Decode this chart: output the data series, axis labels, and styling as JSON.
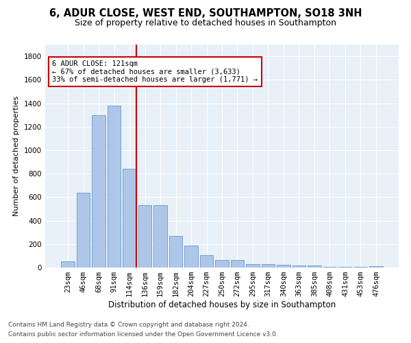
{
  "title1": "6, ADUR CLOSE, WEST END, SOUTHAMPTON, SO18 3NH",
  "title2": "Size of property relative to detached houses in Southampton",
  "xlabel": "Distribution of detached houses by size in Southampton",
  "ylabel": "Number of detached properties",
  "categories": [
    "23sqm",
    "46sqm",
    "68sqm",
    "91sqm",
    "114sqm",
    "136sqm",
    "159sqm",
    "182sqm",
    "204sqm",
    "227sqm",
    "250sqm",
    "272sqm",
    "295sqm",
    "317sqm",
    "340sqm",
    "363sqm",
    "385sqm",
    "408sqm",
    "431sqm",
    "453sqm",
    "476sqm"
  ],
  "values": [
    50,
    640,
    1300,
    1380,
    840,
    530,
    530,
    270,
    185,
    105,
    65,
    65,
    30,
    30,
    25,
    20,
    15,
    8,
    5,
    4,
    10
  ],
  "bar_color": "#aec6e8",
  "bar_edge_color": "#6699cc",
  "vline_color": "#cc0000",
  "annotation_line1": "6 ADUR CLOSE: 121sqm",
  "annotation_line2": "← 67% of detached houses are smaller (3,633)",
  "annotation_line3": "33% of semi-detached houses are larger (1,771) →",
  "ylim": [
    0,
    1900
  ],
  "yticks": [
    0,
    200,
    400,
    600,
    800,
    1000,
    1200,
    1400,
    1600,
    1800
  ],
  "footer1": "Contains HM Land Registry data © Crown copyright and database right 2024.",
  "footer2": "Contains public sector information licensed under the Open Government Licence v3.0.",
  "bg_color": "#e8f0f8",
  "title1_fontsize": 10.5,
  "title2_fontsize": 9,
  "xlabel_fontsize": 8.5,
  "ylabel_fontsize": 8,
  "footer_fontsize": 6.5,
  "tick_fontsize": 7.5,
  "annot_fontsize": 7.5
}
